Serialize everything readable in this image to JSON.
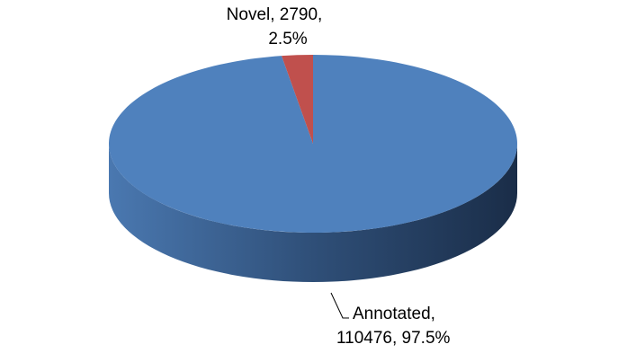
{
  "chart_data": {
    "type": "pie",
    "title": "",
    "categories": [
      "Annotated",
      "Novel"
    ],
    "values": [
      110476,
      2790
    ],
    "percentages": [
      97.5,
      2.5
    ],
    "colors": [
      "#4f81bd",
      "#c0504d"
    ],
    "data_labels": [
      {
        "line1": "Annotated,",
        "line2": "110476, 97.5%"
      },
      {
        "line1": "Novel, 2790,",
        "line2": "2.5%"
      }
    ],
    "legend": "none",
    "style": "3d"
  }
}
